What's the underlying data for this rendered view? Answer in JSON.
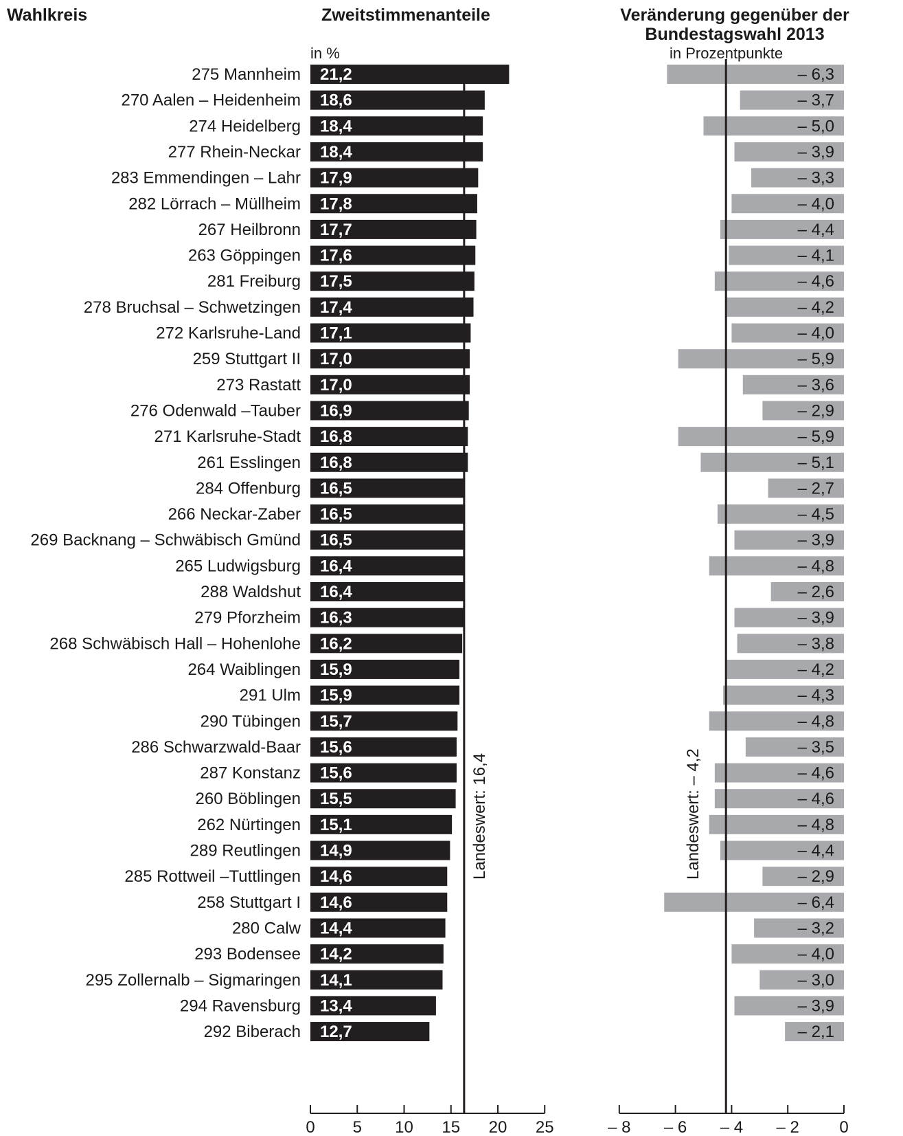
{
  "headers": {
    "left": "Wahlkreis",
    "middle": "Zweitstimmenanteile",
    "right_line1": "Veränderung gegenüber der",
    "right_line2": "Bundestagswahl 2013",
    "middle_unit": "in %",
    "right_unit": "in Prozentpunkte"
  },
  "chart_data": [
    {
      "type": "bar",
      "orientation": "horizontal",
      "title": "Zweitstimmenanteile",
      "unit": "in %",
      "xlim": [
        0,
        25
      ],
      "ticks": [
        "0",
        "5",
        "10",
        "15",
        "20",
        "25"
      ],
      "bar_color": "#231f20",
      "reference_line": {
        "value": 16.4,
        "label": "Landeswert: 16,4"
      },
      "categories": [
        "275 Mannheim",
        "270 Aalen – Heidenheim",
        "274 Heidelberg",
        "277 Rhein-Neckar",
        "283 Emmendingen – Lahr",
        "282 Lörrach – Müllheim",
        "267 Heilbronn",
        "263 Göppingen",
        "281 Freiburg",
        "278 Bruchsal – Schwetzingen",
        "272 Karlsruhe-Land",
        "259 Stuttgart II",
        "273 Rastatt",
        "276 Odenwald –Tauber",
        "271 Karlsruhe-Stadt",
        "261 Esslingen",
        "284 Offenburg",
        "266 Neckar-Zaber",
        "269 Backnang – Schwäbisch Gmünd",
        "265 Ludwigsburg",
        "288 Waldshut",
        "279 Pforzheim",
        "268 Schwäbisch Hall – Hohenlohe",
        "264 Waiblingen",
        "291 Ulm",
        "290 Tübingen",
        "286 Schwarzwald-Baar",
        "287 Konstanz",
        "260 Böblingen",
        "262 Nürtingen",
        "289 Reutlingen",
        "285 Rottweil –Tuttlingen",
        "258 Stuttgart I",
        "280 Calw",
        "293 Bodensee",
        "295 Zollernalb – Sigmaringen",
        "294 Ravensburg",
        "292 Biberach"
      ],
      "values": [
        21.2,
        18.6,
        18.4,
        18.4,
        17.9,
        17.8,
        17.7,
        17.6,
        17.5,
        17.4,
        17.1,
        17.0,
        17.0,
        16.9,
        16.8,
        16.8,
        16.5,
        16.5,
        16.5,
        16.4,
        16.4,
        16.3,
        16.2,
        15.9,
        15.9,
        15.7,
        15.6,
        15.6,
        15.5,
        15.1,
        14.9,
        14.6,
        14.6,
        14.4,
        14.2,
        14.1,
        13.4,
        12.7
      ],
      "value_labels": [
        "21,2",
        "18,6",
        "18,4",
        "18,4",
        "17,9",
        "17,8",
        "17,7",
        "17,6",
        "17,5",
        "17,4",
        "17,1",
        "17,0",
        "17,0",
        "16,9",
        "16,8",
        "16,8",
        "16,5",
        "16,5",
        "16,5",
        "16,4",
        "16,4",
        "16,3",
        "16,2",
        "15,9",
        "15,9",
        "15,7",
        "15,6",
        "15,6",
        "15,5",
        "15,1",
        "14,9",
        "14,6",
        "14,6",
        "14,4",
        "14,2",
        "14,1",
        "13,4",
        "12,7"
      ]
    },
    {
      "type": "bar",
      "orientation": "horizontal",
      "title": "Veränderung gegenüber der Bundestagswahl 2013",
      "unit": "in Prozentpunkte",
      "xlim": [
        -8,
        0
      ],
      "ticks": [
        "– 8",
        "– 6",
        "– 4",
        "– 2",
        "0"
      ],
      "bar_color": "#a7a9ac",
      "reference_line": {
        "value": -4.2,
        "label": "Landeswert: – 4,2"
      },
      "values": [
        -6.3,
        -3.7,
        -5.0,
        -3.9,
        -3.3,
        -4.0,
        -4.4,
        -4.1,
        -4.6,
        -4.2,
        -4.0,
        -5.9,
        -3.6,
        -2.9,
        -5.9,
        -5.1,
        -2.7,
        -4.5,
        -3.9,
        -4.8,
        -2.6,
        -3.9,
        -3.8,
        -4.2,
        -4.3,
        -4.8,
        -3.5,
        -4.6,
        -4.6,
        -4.8,
        -4.4,
        -2.9,
        -6.4,
        -3.2,
        -4.0,
        -3.0,
        -3.9,
        -2.1
      ],
      "value_labels": [
        "– 6,3",
        "– 3,7",
        "– 5,0",
        "– 3,9",
        "– 3,3",
        "– 4,0",
        "– 4,4",
        "– 4,1",
        "– 4,6",
        "– 4,2",
        "– 4,0",
        "– 5,9",
        "– 3,6",
        "– 2,9",
        "– 5,9",
        "– 5,1",
        "– 2,7",
        "– 4,5",
        "– 3,9",
        "– 4,8",
        "– 2,6",
        "– 3,9",
        "– 3,8",
        "– 4,2",
        "– 4,3",
        "– 4,8",
        "– 3,5",
        "– 4,6",
        "– 4,6",
        "– 4,8",
        "– 4,4",
        "– 2,9",
        "– 6,4",
        "– 3,2",
        "– 4,0",
        "– 3,0",
        "– 3,9",
        "– 2,1"
      ]
    }
  ]
}
